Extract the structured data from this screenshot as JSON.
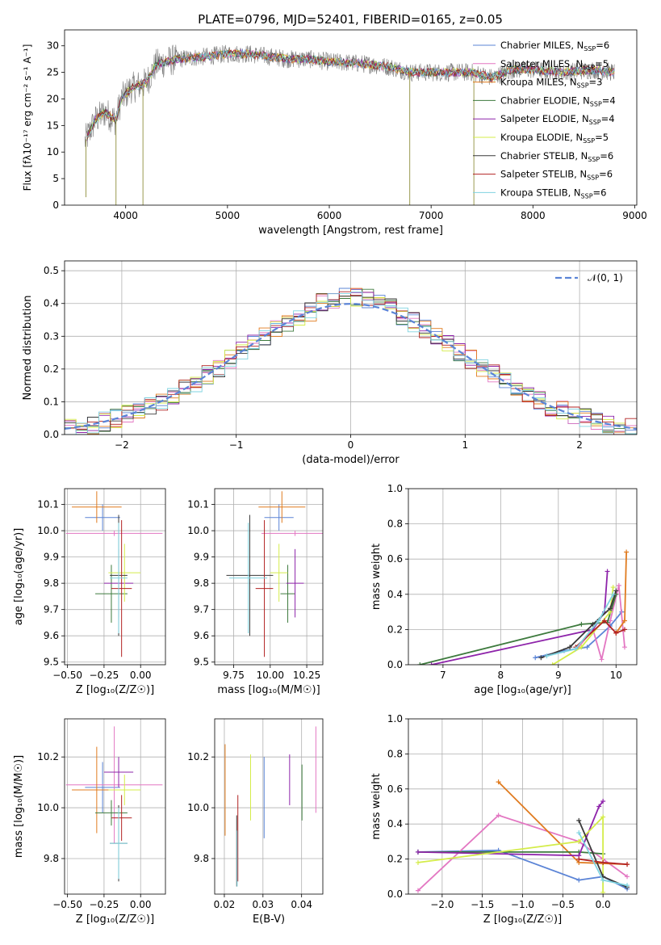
{
  "figure": {
    "title": "PLATE=0796, MJD=52401, FIBERID=0165, z=0.05"
  },
  "models": [
    {
      "name": "Chabrier MILES",
      "nssp": "6",
      "color": "#5b84d6"
    },
    {
      "name": "Salpeter MILES",
      "nssp": "5",
      "color": "#e377c2"
    },
    {
      "name": "Kroupa MILES",
      "nssp": "3",
      "color": "#e07b1f"
    },
    {
      "name": "Chabrier ELODIE",
      "nssp": "4",
      "color": "#3d7a3d"
    },
    {
      "name": "Salpeter ELODIE",
      "nssp": "4",
      "color": "#8e24aa"
    },
    {
      "name": "Kroupa ELODIE",
      "nssp": "5",
      "color": "#d4ec4a"
    },
    {
      "name": "Chabrier STELIB",
      "nssp": "6",
      "color": "#3a3a3a"
    },
    {
      "name": "Salpeter STELIB",
      "nssp": "6",
      "color": "#b22222"
    },
    {
      "name": "Kroupa STELIB",
      "nssp": "6",
      "color": "#7fd3e0"
    }
  ],
  "chart_data": [
    {
      "id": "spectrum",
      "type": "line",
      "title": "PLATE=0796, MJD=52401, FIBERID=0165, z=0.05",
      "xlabel": "wavelength [Angstrom, rest frame]",
      "ylabel": "Flux [fλ10⁻¹⁷ erg cm⁻² s⁻¹ A⁻¹]",
      "xlim": [
        3400,
        9020
      ],
      "ylim": [
        0,
        33
      ],
      "xticks": [
        4000,
        5000,
        6000,
        7000,
        8000,
        9000
      ],
      "yticks": [
        0,
        5,
        10,
        15,
        20,
        25,
        30
      ],
      "legend": "top-right",
      "grid": false,
      "continuum": [
        [
          3600,
          12
        ],
        [
          3700,
          16
        ],
        [
          3800,
          17.5
        ],
        [
          3900,
          16
        ],
        [
          3960,
          20
        ],
        [
          4050,
          22
        ],
        [
          4200,
          23
        ],
        [
          4300,
          26.5
        ],
        [
          4500,
          27.5
        ],
        [
          4800,
          28
        ],
        [
          5000,
          28.5
        ],
        [
          5200,
          28.5
        ],
        [
          5400,
          28
        ],
        [
          5600,
          27.5
        ],
        [
          5800,
          27.5
        ],
        [
          6000,
          27
        ],
        [
          6200,
          26.8
        ],
        [
          6400,
          26.5
        ],
        [
          6600,
          26
        ],
        [
          6800,
          25
        ],
        [
          7000,
          25
        ],
        [
          7200,
          25
        ],
        [
          7400,
          25
        ],
        [
          7600,
          24
        ],
        [
          7800,
          25.5
        ],
        [
          8000,
          25.5
        ],
        [
          8300,
          25
        ],
        [
          8600,
          25.5
        ],
        [
          8800,
          25
        ]
      ]
    },
    {
      "id": "residuals",
      "type": "line",
      "xlabel": "(data-model)/error",
      "ylabel": "Normed distribution",
      "xlim": [
        -2.5,
        2.5
      ],
      "ylim": [
        0,
        0.53
      ],
      "xticks": [
        -2,
        -1,
        0,
        1,
        2
      ],
      "yticks": [
        0.0,
        0.1,
        0.2,
        0.3,
        0.4,
        0.5
      ],
      "grid": true,
      "legend": "top-right",
      "gaussian_label": "𝒩(0, 1)",
      "gaussian_color": "#5b84d6"
    },
    {
      "id": "age_vs_Z",
      "type": "scatter",
      "xlabel": "Z [log₁₀(Z/Z☉)]",
      "ylabel": "age  [log₁₀(age/yr)]",
      "xlim": [
        -0.52,
        0.17
      ],
      "ylim": [
        9.49,
        10.16
      ],
      "xticks": [
        -0.5,
        -0.25,
        0.0
      ],
      "yticks": [
        9.5,
        9.6,
        9.7,
        9.8,
        9.9,
        10.0,
        10.1
      ],
      "grid": true,
      "points": [
        {
          "x": -0.26,
          "xerr": 0.12,
          "y": 10.05,
          "yerr": 0.05,
          "model": 0
        },
        {
          "x": -0.18,
          "xerr": 0.33,
          "y": 9.99,
          "yerr": 0.01,
          "model": 1
        },
        {
          "x": -0.3,
          "xerr": 0.17,
          "y": 10.09,
          "yerr": 0.06,
          "model": 2
        },
        {
          "x": -0.2,
          "xerr": 0.11,
          "y": 9.76,
          "yerr": 0.11,
          "model": 3
        },
        {
          "x": -0.15,
          "xerr": 0.1,
          "y": 9.8,
          "yerr": 0.13,
          "model": 4
        },
        {
          "x": -0.11,
          "xerr": 0.11,
          "y": 9.84,
          "yerr": 0.11,
          "model": 5
        },
        {
          "x": -0.15,
          "xerr": 0.06,
          "y": 9.83,
          "yerr": 0.23,
          "model": 6
        },
        {
          "x": -0.13,
          "xerr": 0.07,
          "y": 9.78,
          "yerr": 0.26,
          "model": 7
        },
        {
          "x": -0.15,
          "xerr": 0.06,
          "y": 9.82,
          "yerr": 0.21,
          "model": 8
        }
      ]
    },
    {
      "id": "age_vs_mass",
      "type": "scatter",
      "xlabel": "mass [log₁₀(M/M☉)]",
      "ylabel": "",
      "xlim": [
        9.62,
        10.36
      ],
      "ylim": [
        9.49,
        10.16
      ],
      "xticks": [
        9.75,
        10.0,
        10.25
      ],
      "yticks": [
        9.5,
        9.6,
        9.7,
        9.8,
        9.9,
        10.0,
        10.1
      ],
      "grid": true,
      "points": [
        {
          "x": 10.06,
          "xerr": 0.1,
          "y": 10.05,
          "yerr": 0.05,
          "model": 0
        },
        {
          "x": 10.17,
          "xerr": 0.23,
          "y": 9.99,
          "yerr": 0.01,
          "model": 1
        },
        {
          "x": 10.08,
          "xerr": 0.16,
          "y": 10.09,
          "yerr": 0.06,
          "model": 2
        },
        {
          "x": 10.12,
          "xerr": 0.05,
          "y": 9.76,
          "yerr": 0.11,
          "model": 3
        },
        {
          "x": 10.17,
          "xerr": 0.06,
          "y": 9.8,
          "yerr": 0.13,
          "model": 4
        },
        {
          "x": 10.06,
          "xerr": 0.06,
          "y": 9.84,
          "yerr": 0.11,
          "model": 5
        },
        {
          "x": 9.86,
          "xerr": 0.16,
          "y": 9.83,
          "yerr": 0.23,
          "model": 6
        },
        {
          "x": 9.96,
          "xerr": 0.06,
          "y": 9.78,
          "yerr": 0.26,
          "model": 7
        },
        {
          "x": 9.85,
          "xerr": 0.13,
          "y": 9.82,
          "yerr": 0.21,
          "model": 8
        }
      ]
    },
    {
      "id": "weight_vs_age",
      "type": "line",
      "xlabel": "age  [log₁₀(age/yr)]",
      "ylabel": "mass weight",
      "xlim": [
        6.4,
        10.36
      ],
      "ylim": [
        0,
        1.0
      ],
      "xticks": [
        7,
        8,
        9,
        10
      ],
      "yticks": [
        0.0,
        0.2,
        0.4,
        0.6,
        0.8,
        1.0
      ],
      "grid": true,
      "series": [
        {
          "model": 0,
          "x": [
            8.6,
            9.1,
            9.5,
            9.9,
            10.1
          ],
          "y": [
            0.04,
            0.08,
            0.1,
            0.22,
            0.3
          ]
        },
        {
          "model": 1,
          "x": [
            9.35,
            9.6,
            9.75,
            9.9,
            10.05,
            10.15
          ],
          "y": [
            0.1,
            0.2,
            0.03,
            0.25,
            0.45,
            0.1
          ]
        },
        {
          "model": 2,
          "x": [
            10.0,
            10.15,
            10.18
          ],
          "y": [
            0.18,
            0.25,
            0.64
          ]
        },
        {
          "model": 3,
          "x": [
            6.6,
            9.4,
            9.85,
            10.0
          ],
          "y": [
            0.0,
            0.23,
            0.24,
            0.4
          ]
        },
        {
          "model": 4,
          "x": [
            6.8,
            9.6,
            9.8,
            9.85
          ],
          "y": [
            0.0,
            0.2,
            0.3,
            0.53
          ]
        },
        {
          "model": 5,
          "x": [
            8.9,
            9.4,
            9.9,
            9.95
          ],
          "y": [
            0.0,
            0.1,
            0.3,
            0.44
          ]
        },
        {
          "model": 6,
          "x": [
            8.7,
            9.2,
            9.6,
            9.9,
            10.0
          ],
          "y": [
            0.04,
            0.1,
            0.23,
            0.32,
            0.42
          ]
        },
        {
          "model": 7,
          "x": [
            9.3,
            9.8,
            10.0,
            10.15
          ],
          "y": [
            0.1,
            0.25,
            0.18,
            0.2
          ]
        },
        {
          "model": 8,
          "x": [
            8.8,
            9.3,
            9.7,
            9.95
          ],
          "y": [
            0.05,
            0.09,
            0.25,
            0.4
          ]
        }
      ]
    },
    {
      "id": "mass_vs_Z",
      "type": "scatter",
      "xlabel": "Z [log₁₀(Z/Z☉)]",
      "ylabel": "mass [log₁₀(M/M☉)]",
      "xlim": [
        -0.52,
        0.17
      ],
      "ylim": [
        9.66,
        10.35
      ],
      "xticks": [
        -0.5,
        -0.25,
        0.0
      ],
      "yticks": [
        9.8,
        10.0,
        10.2
      ],
      "grid": true,
      "points": [
        {
          "x": -0.26,
          "xerr": 0.12,
          "y": 10.08,
          "yerr": 0.1,
          "model": 0
        },
        {
          "x": -0.18,
          "xerr": 0.33,
          "y": 10.09,
          "yerr": 0.23,
          "model": 1
        },
        {
          "x": -0.3,
          "xerr": 0.17,
          "y": 10.07,
          "yerr": 0.17,
          "model": 2
        },
        {
          "x": -0.2,
          "xerr": 0.11,
          "y": 9.98,
          "yerr": 0.05,
          "model": 3
        },
        {
          "x": -0.15,
          "xerr": 0.1,
          "y": 10.14,
          "yerr": 0.06,
          "model": 4
        },
        {
          "x": -0.11,
          "xerr": 0.11,
          "y": 10.07,
          "yerr": 0.06,
          "model": 5
        },
        {
          "x": -0.15,
          "xerr": 0.06,
          "y": 9.86,
          "yerr": 0.15,
          "model": 6
        },
        {
          "x": -0.13,
          "xerr": 0.07,
          "y": 9.96,
          "yerr": 0.09,
          "model": 7
        },
        {
          "x": -0.15,
          "xerr": 0.06,
          "y": 9.86,
          "yerr": 0.14,
          "model": 8
        }
      ]
    },
    {
      "id": "mass_vs_ebv",
      "type": "scatter",
      "xlabel": "E(B-V)",
      "ylabel": "",
      "xlim": [
        0.0175,
        0.0455
      ],
      "ylim": [
        9.66,
        10.35
      ],
      "xticks": [
        0.02,
        0.03,
        0.04
      ],
      "yticks": [
        9.8,
        10.0,
        10.2
      ],
      "grid": true,
      "points": [
        {
          "x": 0.0303,
          "y": 10.04,
          "yerr": 0.16,
          "model": 0
        },
        {
          "x": 0.0437,
          "y": 10.15,
          "yerr": 0.17,
          "model": 1
        },
        {
          "x": 0.0202,
          "y": 10.07,
          "yerr": 0.18,
          "model": 2
        },
        {
          "x": 0.0401,
          "y": 10.06,
          "yerr": 0.11,
          "model": 3
        },
        {
          "x": 0.0369,
          "y": 10.11,
          "yerr": 0.1,
          "model": 4
        },
        {
          "x": 0.0268,
          "y": 10.08,
          "yerr": 0.13,
          "model": 5
        },
        {
          "x": 0.0232,
          "y": 9.83,
          "yerr": 0.14,
          "model": 6
        },
        {
          "x": 0.0235,
          "y": 9.88,
          "yerr": 0.17,
          "model": 7
        },
        {
          "x": 0.0233,
          "y": 9.8,
          "yerr": 0.11,
          "model": 8
        }
      ]
    },
    {
      "id": "weight_vs_Z",
      "type": "line",
      "xlabel": "Z [log₁₀(Z/Z☉)]",
      "ylabel": "mass weight",
      "xlim": [
        -2.42,
        0.42
      ],
      "ylim": [
        0,
        1.0
      ],
      "xticks": [
        -2.0,
        -1.5,
        -1.0,
        -0.5,
        0.0
      ],
      "yticks": [
        0.0,
        0.2,
        0.4,
        0.6,
        0.8,
        1.0
      ],
      "grid": true,
      "series": [
        {
          "model": 0,
          "x": [
            -2.3,
            -1.3,
            -0.3,
            0.0,
            0.3
          ],
          "y": [
            0.24,
            0.25,
            0.08,
            0.1,
            0.03
          ]
        },
        {
          "model": 1,
          "x": [
            -2.3,
            -1.3,
            -0.3,
            0.0,
            0.3
          ],
          "y": [
            0.02,
            0.45,
            0.3,
            0.2,
            0.1
          ]
        },
        {
          "model": 2,
          "x": [
            -1.3,
            -0.3,
            0.3
          ],
          "y": [
            0.64,
            0.18,
            0.17
          ]
        },
        {
          "model": 3,
          "x": [
            -2.3,
            -0.3,
            0.0
          ],
          "y": [
            0.24,
            0.24,
            0.23
          ]
        },
        {
          "model": 4,
          "x": [
            -2.3,
            -0.3,
            -0.05,
            0.0
          ],
          "y": [
            0.24,
            0.22,
            0.5,
            0.53
          ]
        },
        {
          "model": 5,
          "x": [
            -2.3,
            -0.3,
            0.0,
            0.0
          ],
          "y": [
            0.18,
            0.3,
            0.44,
            0.01
          ]
        },
        {
          "model": 6,
          "x": [
            -0.3,
            0.0,
            0.3
          ],
          "y": [
            0.42,
            0.1,
            0.04
          ]
        },
        {
          "model": 7,
          "x": [
            -0.3,
            0.0,
            0.3
          ],
          "y": [
            0.2,
            0.18,
            0.17
          ]
        },
        {
          "model": 8,
          "x": [
            -0.3,
            0.0,
            0.3
          ],
          "y": [
            0.35,
            0.08,
            0.05
          ]
        }
      ]
    }
  ]
}
